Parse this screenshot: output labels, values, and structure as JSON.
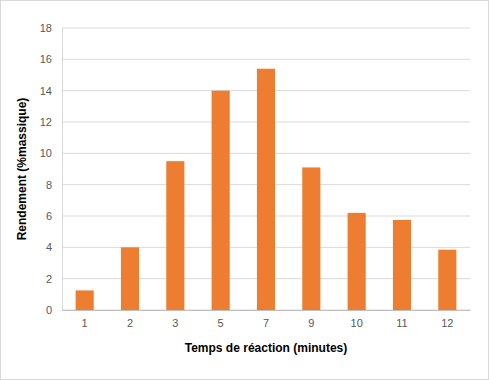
{
  "chart_data": {
    "type": "bar",
    "x_label": "Temps de réaction (minutes)",
    "y_label": "Rendement (%massique)",
    "categories": [
      "1",
      "2",
      "3",
      "5",
      "7",
      "9",
      "10",
      "11",
      "12"
    ],
    "values": [
      1.25,
      4.0,
      9.5,
      14.0,
      15.4,
      9.1,
      6.2,
      5.75,
      3.85
    ],
    "color": "#ed7d31",
    "ylim": [
      0,
      18
    ],
    "yticks": [
      0,
      2,
      4,
      6,
      8,
      10,
      12,
      14,
      16,
      18
    ],
    "grid": true
  }
}
